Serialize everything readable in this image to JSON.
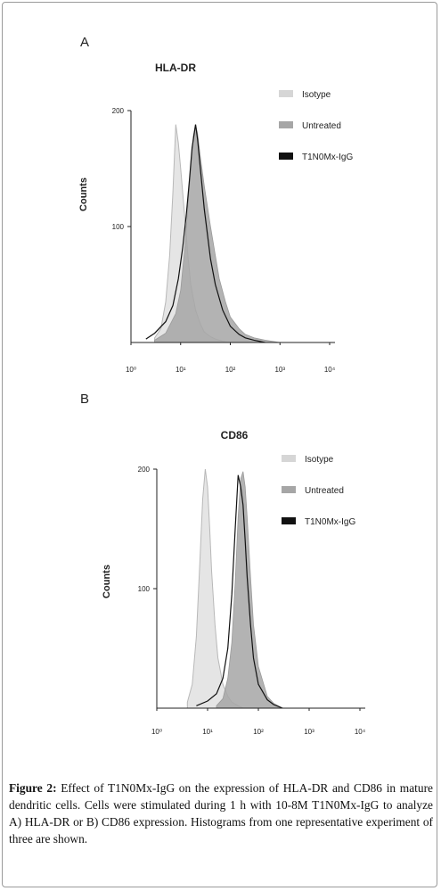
{
  "chart_data": [
    {
      "type": "area",
      "panel_label": "A",
      "title": "HLA-DR",
      "xlabel": "",
      "ylabel": "Counts",
      "xscale": "log",
      "xlim": [
        1,
        10000
      ],
      "ylim": [
        0,
        200
      ],
      "x_tick_labels": [
        "10⁰",
        "10¹",
        "10²",
        "10³",
        "10⁴"
      ],
      "y_tick_labels": [
        "100",
        "200"
      ],
      "legend_position": "top-right",
      "series": [
        {
          "name": "Isotype",
          "color": "#c4c4c4",
          "x": [
            3,
            4,
            5,
            6,
            7,
            8,
            9,
            10,
            12,
            14,
            16,
            20,
            25,
            30,
            40,
            50,
            70,
            100
          ],
          "values": [
            4,
            12,
            35,
            75,
            130,
            188,
            172,
            150,
            110,
            75,
            50,
            28,
            16,
            9,
            5,
            3,
            1,
            0
          ]
        },
        {
          "name": "Untreated",
          "color": "#a9a9a9",
          "x": [
            3,
            5,
            8,
            10,
            12,
            15,
            18,
            20,
            22,
            25,
            30,
            40,
            50,
            60,
            80,
            100,
            150,
            200,
            300,
            500,
            1000
          ],
          "values": [
            2,
            8,
            25,
            45,
            80,
            135,
            178,
            188,
            180,
            160,
            135,
            100,
            75,
            55,
            35,
            22,
            12,
            7,
            4,
            2,
            0
          ]
        },
        {
          "name": "T1N0Mx-IgG",
          "color": "#111111",
          "x": [
            2,
            3,
            5,
            7,
            9,
            11,
            13,
            15,
            17,
            20,
            22,
            25,
            30,
            40,
            50,
            70,
            100,
            150,
            200,
            300,
            500
          ],
          "values": [
            3,
            8,
            18,
            32,
            55,
            82,
            110,
            140,
            168,
            188,
            175,
            150,
            115,
            72,
            50,
            28,
            14,
            7,
            4,
            2,
            0
          ]
        }
      ]
    },
    {
      "type": "area",
      "panel_label": "B",
      "title": "CD86",
      "xlabel": "",
      "ylabel": "Counts",
      "xscale": "log",
      "xlim": [
        1,
        10000
      ],
      "ylim": [
        0,
        200
      ],
      "x_tick_labels": [
        "10⁰",
        "10¹",
        "10²",
        "10³",
        "10⁴"
      ],
      "y_tick_labels": [
        "100",
        "200"
      ],
      "legend_position": "top-right",
      "series": [
        {
          "name": "Isotype",
          "color": "#c4c4c4",
          "x": [
            4,
            5,
            6,
            7,
            8,
            9,
            10,
            11,
            12,
            14,
            16,
            20,
            25,
            30,
            40,
            50
          ],
          "values": [
            5,
            20,
            60,
            120,
            175,
            200,
            185,
            150,
            115,
            70,
            42,
            20,
            10,
            5,
            2,
            0
          ]
        },
        {
          "name": "Untreated",
          "color": "#a9a9a9",
          "x": [
            15,
            20,
            25,
            30,
            35,
            40,
            45,
            50,
            55,
            60,
            70,
            80,
            100,
            150,
            200,
            300
          ],
          "values": [
            2,
            8,
            25,
            55,
            105,
            160,
            192,
            198,
            185,
            160,
            110,
            70,
            35,
            10,
            4,
            0
          ]
        },
        {
          "name": "T1N0Mx-IgG",
          "color": "#111111",
          "x": [
            6,
            10,
            15,
            20,
            25,
            30,
            35,
            40,
            45,
            50,
            55,
            60,
            70,
            80,
            100,
            150,
            200,
            300
          ],
          "values": [
            2,
            6,
            12,
            25,
            50,
            95,
            150,
            195,
            185,
            170,
            140,
            110,
            70,
            42,
            20,
            7,
            3,
            0
          ]
        }
      ]
    }
  ],
  "caption": {
    "label": "Figure 2:",
    "text": "Effect of T1N0Mx-IgG on the expression of HLA-DR and CD86 in mature dendritic cells. Cells were stimulated during 1 h with 10-8M T1N0Mx-IgG to analyze A) HLA-DR or B) CD86 expression. Histograms from one representative experiment of three are shown."
  }
}
